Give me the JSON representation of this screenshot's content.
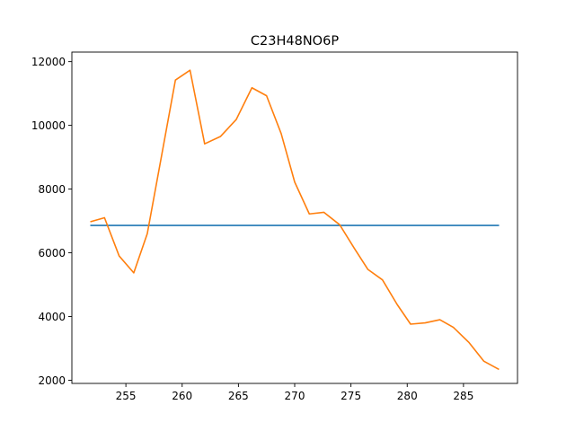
{
  "chart_data": {
    "type": "line",
    "title": "C23H48NO6P",
    "xlabel": "",
    "ylabel": "",
    "xlim": [
      250.2,
      289.8
    ],
    "ylim": [
      1900,
      12300
    ],
    "xticks": [
      255,
      260,
      265,
      270,
      275,
      280,
      285
    ],
    "yticks": [
      2000,
      4000,
      6000,
      8000,
      10000,
      12000
    ],
    "grid": false,
    "series": [
      {
        "color": "#1f77b4",
        "x": [
          251.9,
          288.1
        ],
        "y": [
          6860,
          6860
        ]
      },
      {
        "color": "#ff7f0e",
        "x": [
          251.9,
          253.1,
          254.4,
          255.7,
          256.9,
          258.2,
          259.4,
          260.7,
          262.0,
          263.4,
          264.8,
          266.2,
          267.5,
          268.8,
          270.0,
          271.3,
          272.6,
          274.0,
          275.3,
          276.5,
          277.8,
          279.1,
          280.3,
          281.6,
          282.9,
          284.1,
          285.5,
          286.8,
          288.1
        ],
        "y": [
          6980,
          7100,
          5900,
          5370,
          6600,
          9100,
          11420,
          11730,
          9420,
          9650,
          10180,
          11180,
          10930,
          9740,
          8220,
          7220,
          7270,
          6880,
          6140,
          5480,
          5150,
          4380,
          3760,
          3800,
          3900,
          3660,
          3180,
          2600,
          2350
        ]
      }
    ]
  }
}
